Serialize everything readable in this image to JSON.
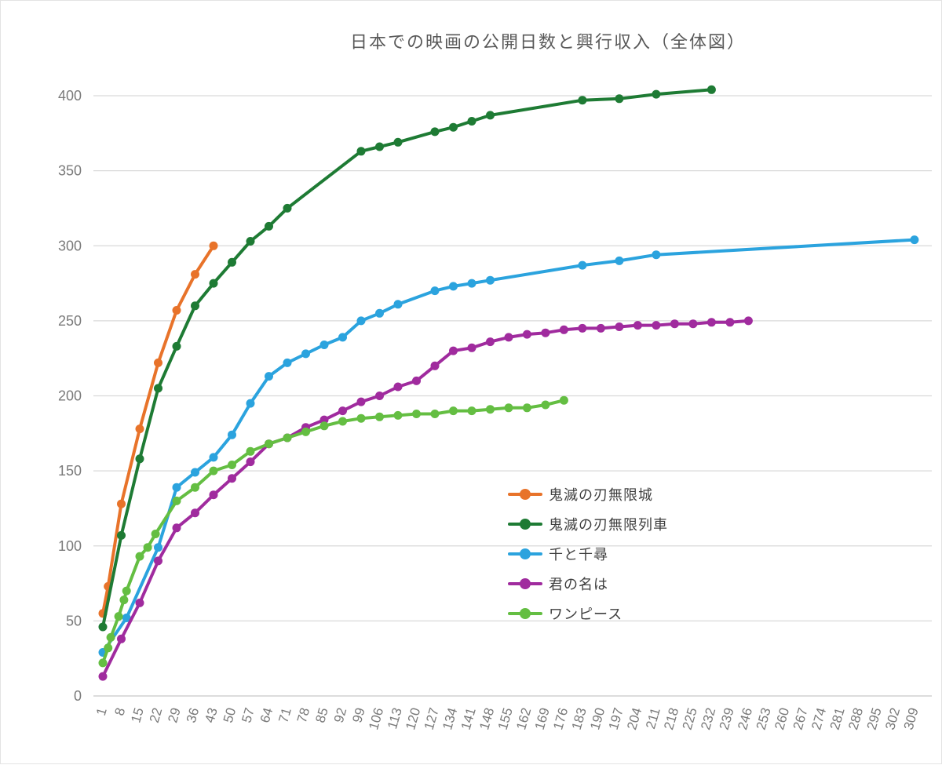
{
  "title": "日本での映画の公開日数と興行収入（全体図）",
  "chart_data": {
    "type": "line",
    "title": "日本での映画の公開日数と興行収入（全体図）",
    "xlabel": "",
    "ylabel": "",
    "x_axis": {
      "description": "days since release (公開日数), daily scale labeled weekly",
      "min": 1,
      "max": 309,
      "tick_labels": [
        1,
        8,
        15,
        22,
        29,
        36,
        43,
        50,
        57,
        64,
        71,
        78,
        85,
        92,
        99,
        106,
        113,
        120,
        127,
        134,
        141,
        148,
        155,
        162,
        169,
        176,
        183,
        190,
        197,
        204,
        211,
        218,
        225,
        232,
        239,
        246,
        253,
        260,
        267,
        274,
        281,
        288,
        295,
        302,
        309
      ]
    },
    "y_axis": {
      "description": "box office revenue (興行収入, 億円)",
      "min": 0,
      "max": 400,
      "tick_step": 50,
      "tick_labels": [
        0,
        50,
        100,
        150,
        200,
        250,
        300,
        350,
        400
      ]
    },
    "grid": "horizontal",
    "legend_position": "middle-right",
    "series": [
      {
        "name": "鬼滅の刃無限城",
        "color": "#E8732A",
        "points": [
          [
            1,
            55
          ],
          [
            3,
            73
          ],
          [
            8,
            128
          ],
          [
            15,
            178
          ],
          [
            22,
            222
          ],
          [
            29,
            257
          ],
          [
            36,
            281
          ],
          [
            43,
            300
          ]
        ]
      },
      {
        "name": "鬼滅の刃無限列車",
        "color": "#1E7B34",
        "points": [
          [
            1,
            46
          ],
          [
            8,
            107
          ],
          [
            15,
            158
          ],
          [
            22,
            205
          ],
          [
            29,
            233
          ],
          [
            36,
            260
          ],
          [
            43,
            275
          ],
          [
            50,
            289
          ],
          [
            57,
            303
          ],
          [
            64,
            313
          ],
          [
            71,
            325
          ],
          [
            99,
            363
          ],
          [
            106,
            366
          ],
          [
            113,
            369
          ],
          [
            127,
            376
          ],
          [
            134,
            379
          ],
          [
            141,
            383
          ],
          [
            148,
            387
          ],
          [
            183,
            397
          ],
          [
            197,
            398
          ],
          [
            211,
            401
          ],
          [
            232,
            404
          ]
        ]
      },
      {
        "name": "千と千尋",
        "color": "#2BA3DE",
        "points": [
          [
            1,
            29
          ],
          [
            10,
            52
          ],
          [
            22,
            99
          ],
          [
            29,
            139
          ],
          [
            36,
            149
          ],
          [
            43,
            159
          ],
          [
            50,
            174
          ],
          [
            57,
            195
          ],
          [
            64,
            213
          ],
          [
            71,
            222
          ],
          [
            78,
            228
          ],
          [
            85,
            234
          ],
          [
            92,
            239
          ],
          [
            99,
            250
          ],
          [
            106,
            255
          ],
          [
            113,
            261
          ],
          [
            127,
            270
          ],
          [
            134,
            273
          ],
          [
            141,
            275
          ],
          [
            148,
            277
          ],
          [
            183,
            287
          ],
          [
            197,
            290
          ],
          [
            211,
            294
          ],
          [
            309,
            304
          ]
        ]
      },
      {
        "name": "君の名は",
        "color": "#A02B9E",
        "points": [
          [
            1,
            13
          ],
          [
            8,
            38
          ],
          [
            15,
            62
          ],
          [
            22,
            90
          ],
          [
            29,
            112
          ],
          [
            36,
            122
          ],
          [
            43,
            134
          ],
          [
            50,
            145
          ],
          [
            57,
            156
          ],
          [
            64,
            168
          ],
          [
            71,
            172
          ],
          [
            78,
            179
          ],
          [
            85,
            184
          ],
          [
            92,
            190
          ],
          [
            99,
            196
          ],
          [
            106,
            200
          ],
          [
            113,
            206
          ],
          [
            120,
            210
          ],
          [
            127,
            220
          ],
          [
            134,
            230
          ],
          [
            141,
            232
          ],
          [
            148,
            236
          ],
          [
            155,
            239
          ],
          [
            162,
            241
          ],
          [
            169,
            242
          ],
          [
            176,
            244
          ],
          [
            183,
            245
          ],
          [
            190,
            245
          ],
          [
            197,
            246
          ],
          [
            204,
            247
          ],
          [
            211,
            247
          ],
          [
            218,
            248
          ],
          [
            225,
            248
          ],
          [
            232,
            249
          ],
          [
            239,
            249
          ],
          [
            246,
            250
          ]
        ]
      },
      {
        "name": "ワンピース",
        "color": "#64BE42",
        "points": [
          [
            1,
            22
          ],
          [
            3,
            32
          ],
          [
            4,
            39
          ],
          [
            7,
            53
          ],
          [
            9,
            64
          ],
          [
            10,
            70
          ],
          [
            15,
            93
          ],
          [
            18,
            99
          ],
          [
            21,
            108
          ],
          [
            29,
            130
          ],
          [
            36,
            139
          ],
          [
            43,
            150
          ],
          [
            50,
            154
          ],
          [
            57,
            163
          ],
          [
            64,
            168
          ],
          [
            71,
            172
          ],
          [
            78,
            176
          ],
          [
            85,
            180
          ],
          [
            92,
            183
          ],
          [
            99,
            185
          ],
          [
            106,
            186
          ],
          [
            113,
            187
          ],
          [
            120,
            188
          ],
          [
            127,
            188
          ],
          [
            134,
            190
          ],
          [
            141,
            190
          ],
          [
            148,
            191
          ],
          [
            155,
            192
          ],
          [
            162,
            192
          ],
          [
            169,
            194
          ],
          [
            176,
            197
          ]
        ]
      }
    ],
    "style": {
      "grid_color": "#D9D9D9",
      "tick_text_color": "#7a7a7a",
      "title_color": "#595959",
      "line_width": 4,
      "marker_radius": 5.5,
      "x_label_rotation_deg": -74
    }
  }
}
